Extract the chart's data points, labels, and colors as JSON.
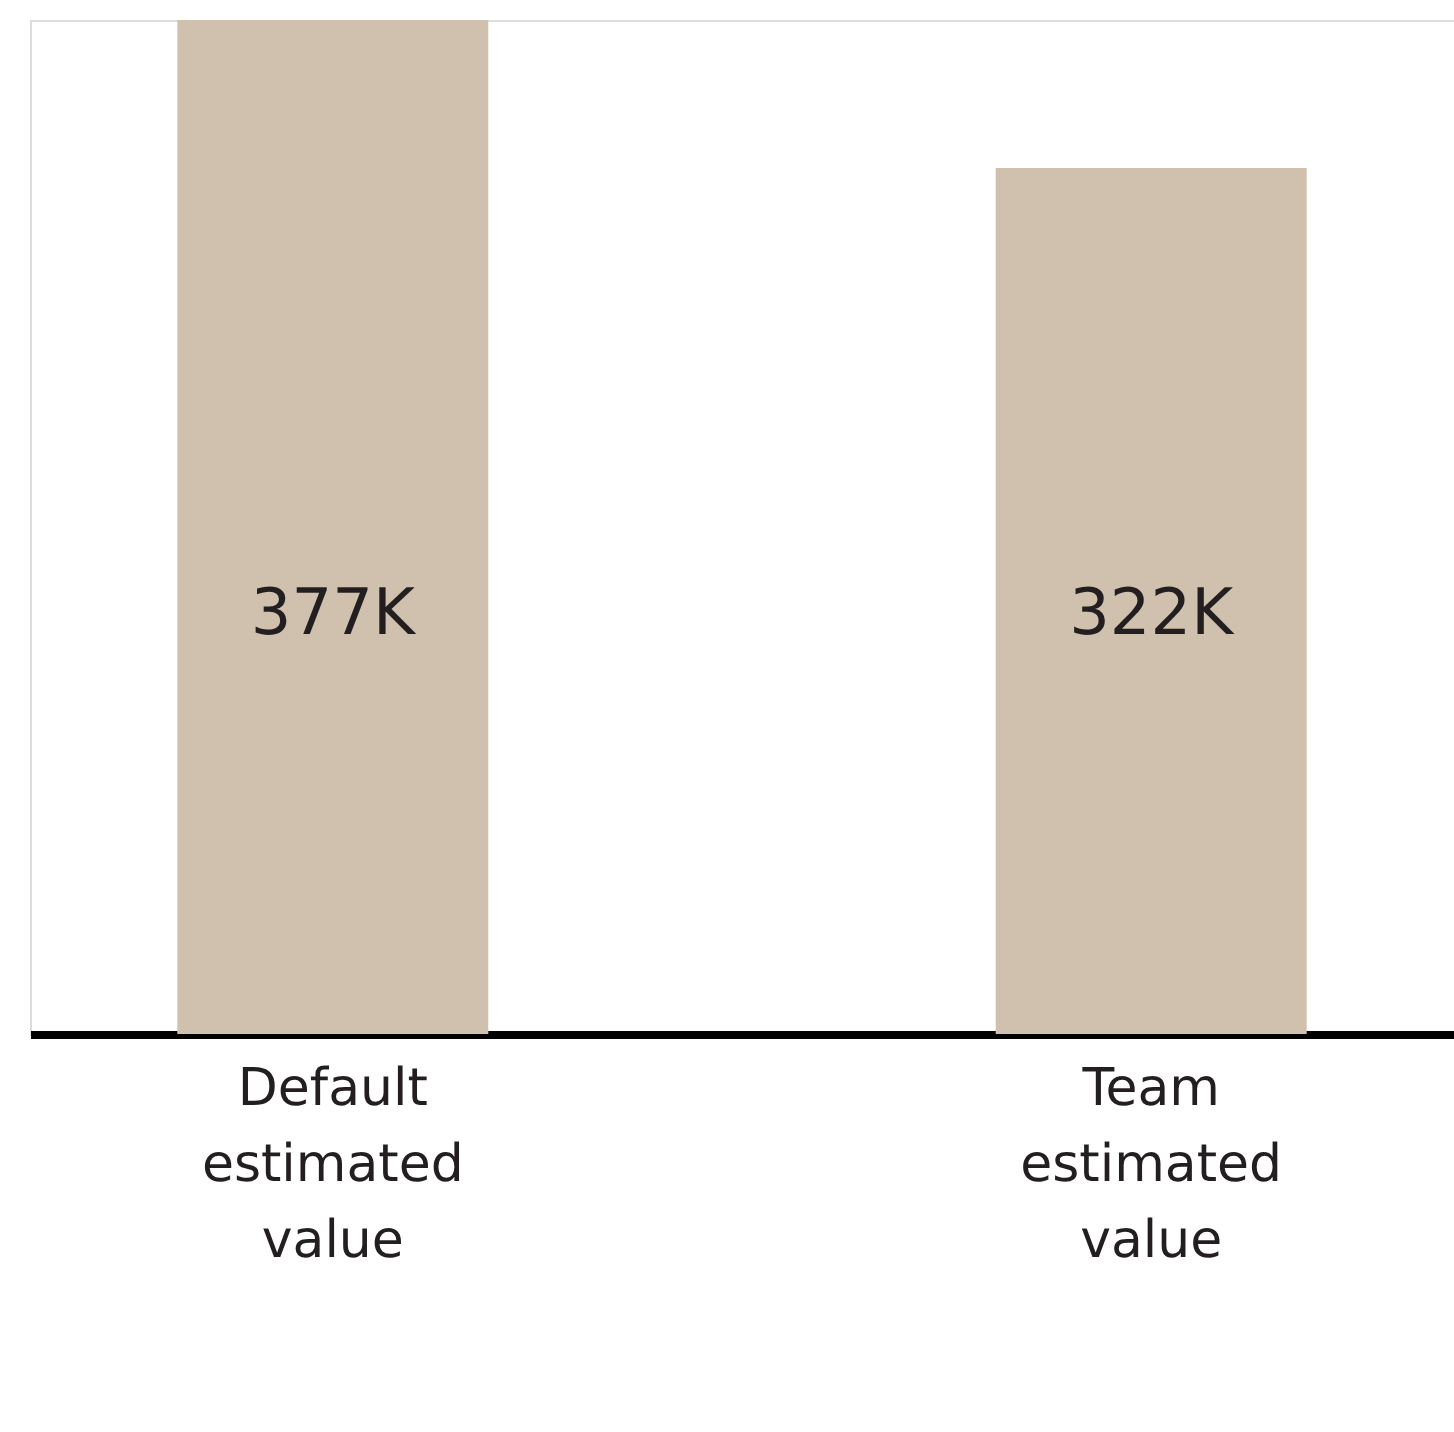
{
  "chart_data": {
    "type": "bar",
    "categories": [
      "Default estimated value",
      "Team estimated value"
    ],
    "values": [
      377000,
      322000
    ],
    "value_labels": [
      "377K",
      "322K"
    ],
    "color": "#cfc1ad"
  }
}
